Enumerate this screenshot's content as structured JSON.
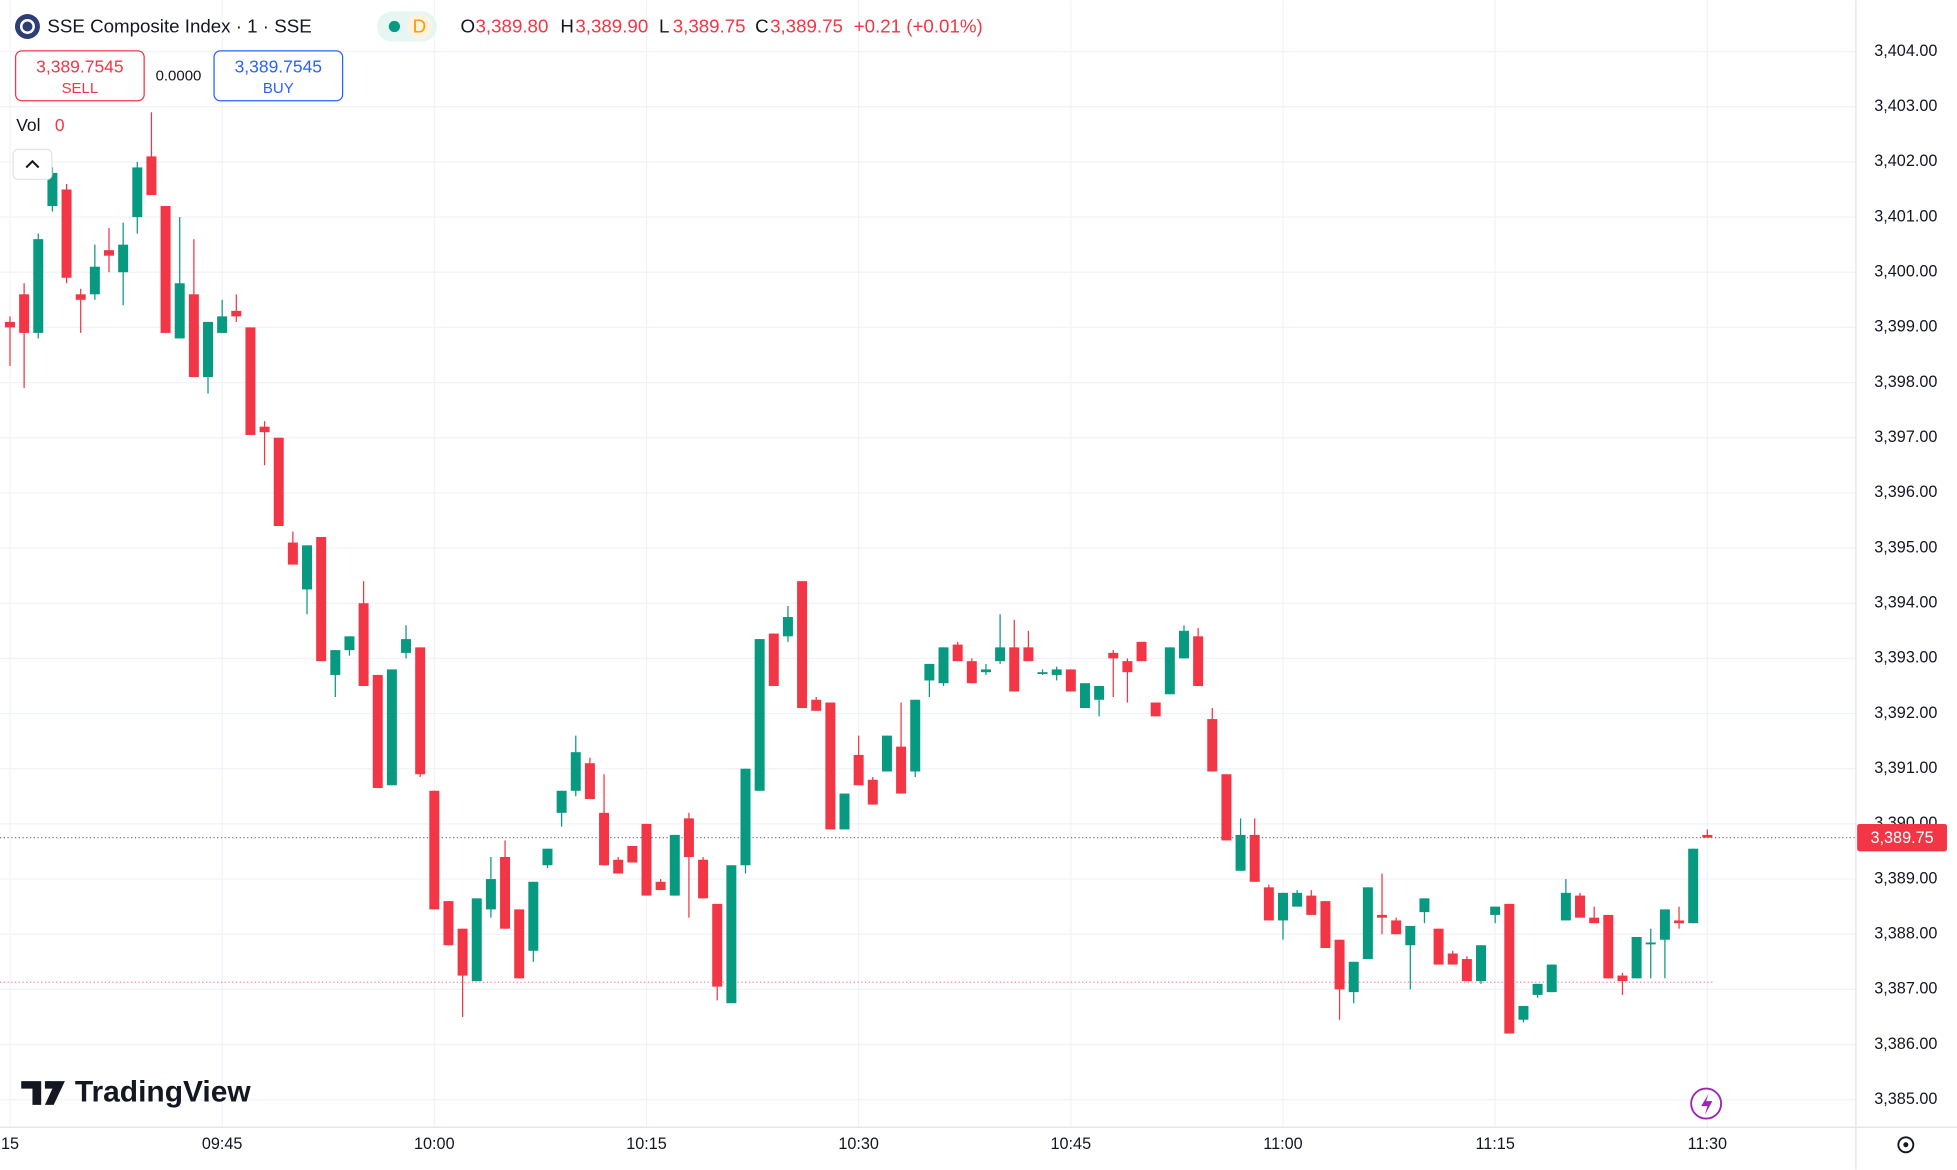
{
  "header": {
    "title": "SSE Composite Index · 1 · SSE",
    "session": "D",
    "o_label": "O",
    "o": "3,389.80",
    "h_label": "H",
    "h": "3,389.90",
    "l_label": "L",
    "l": "3,389.75",
    "c_label": "C",
    "c": "3,389.75",
    "change": "+0.21 (+0.01%)",
    "sell_price": "3,389.7545",
    "sell": "SELL",
    "spread": "0.0000",
    "buy_price": "3,389.7545",
    "buy": "BUY",
    "vol_label": "Vol",
    "vol": "0",
    "brand": "TradingView"
  },
  "chart_data": {
    "type": "candlestick",
    "up_color": "#089981",
    "down_color": "#f23645",
    "grid": true,
    "x": [
      "09:30",
      "09:31",
      "09:32",
      "09:33",
      "09:34",
      "09:35",
      "09:36",
      "09:37",
      "09:38",
      "09:39",
      "09:40",
      "09:41",
      "09:42",
      "09:43",
      "09:44",
      "09:45",
      "09:46",
      "09:47",
      "09:48",
      "09:49",
      "09:50",
      "09:51",
      "09:52",
      "09:53",
      "09:54",
      "09:55",
      "09:56",
      "09:57",
      "09:58",
      "09:59",
      "10:00",
      "10:01",
      "10:02",
      "10:03",
      "10:04",
      "10:05",
      "10:06",
      "10:07",
      "10:08",
      "10:09",
      "10:10",
      "10:11",
      "10:12",
      "10:13",
      "10:14",
      "10:15",
      "10:16",
      "10:17",
      "10:18",
      "10:19",
      "10:20",
      "10:21",
      "10:22",
      "10:23",
      "10:24",
      "10:25",
      "10:26",
      "10:27",
      "10:28",
      "10:29",
      "10:30",
      "10:31",
      "10:32",
      "10:33",
      "10:34",
      "10:35",
      "10:36",
      "10:37",
      "10:38",
      "10:39",
      "10:40",
      "10:41",
      "10:42",
      "10:43",
      "10:44",
      "10:45",
      "10:46",
      "10:47",
      "10:48",
      "10:49",
      "10:50",
      "10:51",
      "10:52",
      "10:53",
      "10:54",
      "10:55",
      "10:56",
      "10:57",
      "10:58",
      "10:59",
      "11:00",
      "11:01",
      "11:02",
      "11:03",
      "11:04",
      "11:05",
      "11:06",
      "11:07",
      "11:08",
      "11:09",
      "11:10",
      "11:11",
      "11:12",
      "11:13",
      "11:14",
      "11:15",
      "11:16",
      "11:17",
      "11:18",
      "11:19",
      "11:20",
      "11:21",
      "11:22",
      "11:23",
      "11:24",
      "11:25",
      "11:26",
      "11:27",
      "11:28",
      "11:29",
      "11:30"
    ],
    "open": [
      3399.1,
      3399.6,
      3398.9,
      3401.2,
      3401.5,
      3399.6,
      3399.6,
      3400.4,
      3400.0,
      3401.0,
      3402.1,
      3401.2,
      3398.8,
      3399.6,
      3398.1,
      3398.9,
      3399.3,
      3399.0,
      3397.2,
      3397.0,
      3395.1,
      3394.25,
      3395.2,
      3392.7,
      3393.15,
      3394.0,
      3392.7,
      3390.7,
      3393.1,
      3393.2,
      3390.6,
      3388.6,
      3388.1,
      3387.15,
      3388.45,
      3389.4,
      3388.45,
      3387.7,
      3389.25,
      3390.2,
      3390.6,
      3391.1,
      3390.2,
      3389.35,
      3389.6,
      3390.0,
      3388.95,
      3388.7,
      3390.1,
      3389.35,
      3388.55,
      3386.75,
      3389.25,
      3390.6,
      3393.45,
      3393.4,
      3394.4,
      3392.25,
      3392.2,
      3389.9,
      3391.25,
      3390.8,
      3390.95,
      3391.4,
      3390.95,
      3392.6,
      3392.55,
      3393.25,
      3392.95,
      3392.75,
      3392.95,
      3393.2,
      3393.2,
      3392.75,
      3392.7,
      3392.8,
      3392.1,
      3392.25,
      3393.1,
      3392.95,
      3393.3,
      3392.2,
      3392.35,
      3393.0,
      3393.4,
      3391.9,
      3390.9,
      3389.15,
      3389.8,
      3388.85,
      3388.25,
      3388.5,
      3388.7,
      3388.6,
      3387.9,
      3386.95,
      3387.55,
      3388.35,
      3388.25,
      3387.8,
      3388.4,
      3388.1,
      3387.65,
      3387.55,
      3387.15,
      3388.35,
      3388.55,
      3386.45,
      3386.9,
      3386.95,
      3388.25,
      3388.7,
      3388.3,
      3388.35,
      3387.25,
      3387.2,
      3387.85,
      3387.9,
      3388.25,
      3388.2,
      3389.8
    ],
    "high": [
      3399.2,
      3399.8,
      3400.7,
      3401.9,
      3401.6,
      3399.7,
      3400.5,
      3400.8,
      3400.9,
      3402.0,
      3402.9,
      3401.2,
      3401.0,
      3400.6,
      3399.1,
      3399.5,
      3399.6,
      3399.0,
      3397.3,
      3397.0,
      3395.3,
      3395.05,
      3395.2,
      3393.15,
      3393.4,
      3394.4,
      3392.7,
      3392.8,
      3393.6,
      3393.2,
      3390.6,
      3388.6,
      3388.1,
      3388.65,
      3389.4,
      3389.7,
      3388.45,
      3388.95,
      3389.55,
      3390.6,
      3391.6,
      3391.2,
      3390.9,
      3389.4,
      3389.6,
      3390.0,
      3389.0,
      3389.8,
      3390.2,
      3389.4,
      3388.55,
      3389.25,
      3391.0,
      3393.35,
      3393.45,
      3393.95,
      3394.4,
      3392.3,
      3392.2,
      3390.55,
      3391.6,
      3390.85,
      3391.6,
      3392.2,
      3392.25,
      3392.9,
      3393.2,
      3393.3,
      3393.0,
      3392.9,
      3393.8,
      3393.7,
      3393.5,
      3392.8,
      3392.85,
      3392.8,
      3392.55,
      3392.5,
      3393.15,
      3393.0,
      3393.3,
      3392.2,
      3393.2,
      3393.6,
      3393.55,
      3392.1,
      3390.9,
      3390.1,
      3390.1,
      3388.9,
      3388.75,
      3388.8,
      3388.8,
      3388.6,
      3387.9,
      3387.5,
      3388.85,
      3389.1,
      3388.3,
      3388.15,
      3388.65,
      3388.1,
      3387.7,
      3387.6,
      3387.8,
      3388.5,
      3388.55,
      3386.7,
      3387.1,
      3387.45,
      3389.0,
      3388.75,
      3388.5,
      3388.35,
      3387.3,
      3387.95,
      3388.1,
      3388.45,
      3388.5,
      3389.55,
      3389.9
    ],
    "low": [
      3398.3,
      3397.9,
      3398.8,
      3401.1,
      3399.8,
      3398.9,
      3399.5,
      3400.0,
      3399.4,
      3400.7,
      3401.4,
      3398.9,
      3398.8,
      3398.1,
      3397.8,
      3398.9,
      3399.1,
      3397.05,
      3396.5,
      3395.4,
      3394.7,
      3393.8,
      3392.95,
      3392.3,
      3393.05,
      3392.5,
      3390.65,
      3390.7,
      3393.0,
      3390.85,
      3388.45,
      3387.8,
      3386.5,
      3387.15,
      3388.3,
      3388.1,
      3387.2,
      3387.5,
      3389.2,
      3389.95,
      3390.5,
      3390.45,
      3389.25,
      3389.1,
      3389.3,
      3388.7,
      3388.8,
      3388.7,
      3388.3,
      3388.65,
      3386.8,
      3386.75,
      3389.1,
      3390.6,
      3392.5,
      3393.3,
      3392.1,
      3392.05,
      3389.9,
      3389.9,
      3390.7,
      3390.35,
      3390.95,
      3390.55,
      3390.85,
      3392.3,
      3392.5,
      3392.95,
      3392.55,
      3392.7,
      3392.9,
      3392.4,
      3392.95,
      3392.7,
      3392.6,
      3392.4,
      3392.1,
      3391.95,
      3392.3,
      3392.2,
      3392.95,
      3391.95,
      3392.35,
      3393.0,
      3392.5,
      3390.95,
      3389.7,
      3389.15,
      3388.95,
      3388.25,
      3387.9,
      3388.5,
      3388.35,
      3387.75,
      3386.45,
      3386.75,
      3387.55,
      3388.0,
      3388.0,
      3387.0,
      3388.2,
      3387.45,
      3387.45,
      3387.15,
      3387.1,
      3388.2,
      3386.2,
      3386.4,
      3386.85,
      3386.95,
      3388.25,
      3388.3,
      3388.2,
      3387.2,
      3386.9,
      3387.2,
      3387.2,
      3387.2,
      3388.1,
      3388.2,
      3389.75
    ],
    "close": [
      3399.0,
      3398.9,
      3400.6,
      3401.8,
      3399.9,
      3399.5,
      3400.1,
      3400.3,
      3400.5,
      3401.9,
      3401.4,
      3398.9,
      3399.8,
      3398.1,
      3399.1,
      3399.2,
      3399.2,
      3397.05,
      3397.1,
      3395.4,
      3394.7,
      3395.05,
      3392.95,
      3393.15,
      3393.4,
      3392.5,
      3390.65,
      3392.8,
      3393.35,
      3390.9,
      3388.45,
      3387.8,
      3387.25,
      3388.65,
      3389.0,
      3388.1,
      3387.2,
      3388.95,
      3389.55,
      3390.6,
      3391.3,
      3390.45,
      3389.25,
      3389.1,
      3389.3,
      3388.7,
      3388.8,
      3389.8,
      3389.4,
      3388.65,
      3387.05,
      3389.25,
      3391.0,
      3393.35,
      3392.5,
      3393.75,
      3392.1,
      3392.05,
      3389.9,
      3390.55,
      3390.7,
      3390.35,
      3391.6,
      3390.55,
      3392.25,
      3392.9,
      3393.2,
      3392.95,
      3392.55,
      3392.8,
      3393.2,
      3392.4,
      3392.95,
      3392.75,
      3392.8,
      3392.4,
      3392.55,
      3392.5,
      3393.0,
      3392.75,
      3392.95,
      3391.95,
      3393.2,
      3393.5,
      3392.5,
      3390.95,
      3389.7,
      3389.8,
      3388.95,
      3388.25,
      3388.75,
      3388.75,
      3388.35,
      3387.75,
      3387.0,
      3387.5,
      3388.85,
      3388.3,
      3388.0,
      3388.15,
      3388.65,
      3387.45,
      3387.45,
      3387.15,
      3387.8,
      3388.5,
      3386.2,
      3386.7,
      3387.1,
      3387.45,
      3388.75,
      3388.3,
      3388.2,
      3387.2,
      3387.15,
      3387.95,
      3387.85,
      3388.45,
      3388.2,
      3389.55,
      3389.75
    ],
    "price_label": "3,389.75",
    "marker_line": 3387.13,
    "ylim": [
      3384.5,
      3404.93
    ],
    "yticks": [
      {
        "value": 3385,
        "label": "3,385.00"
      },
      {
        "value": 3386,
        "label": "3,386.00"
      },
      {
        "value": 3387,
        "label": "3,387.00"
      },
      {
        "value": 3388,
        "label": "3,388.00"
      },
      {
        "value": 3389,
        "label": "3,389.00"
      },
      {
        "value": 3390,
        "label": "3,390.00"
      },
      {
        "value": 3391,
        "label": "3,391.00"
      },
      {
        "value": 3392,
        "label": "3,392.00"
      },
      {
        "value": 3393,
        "label": "3,393.00"
      },
      {
        "value": 3394,
        "label": "3,394.00"
      },
      {
        "value": 3395,
        "label": "3,395.00"
      },
      {
        "value": 3396,
        "label": "3,396.00"
      },
      {
        "value": 3397,
        "label": "3,397.00"
      },
      {
        "value": 3398,
        "label": "3,398.00"
      },
      {
        "value": 3399,
        "label": "3,399.00"
      },
      {
        "value": 3400,
        "label": "3,400.00"
      },
      {
        "value": 3401,
        "label": "3,401.00"
      },
      {
        "value": 3402,
        "label": "3,402.00"
      },
      {
        "value": 3403,
        "label": "3,403.00"
      },
      {
        "value": 3404,
        "label": "3,404.00"
      }
    ],
    "xticks": [
      {
        "value": "09:30",
        "label": "15"
      },
      "09:45",
      "10:00",
      "10:15",
      "10:30",
      "10:45",
      "11:00",
      "11:15",
      "11:30"
    ]
  }
}
